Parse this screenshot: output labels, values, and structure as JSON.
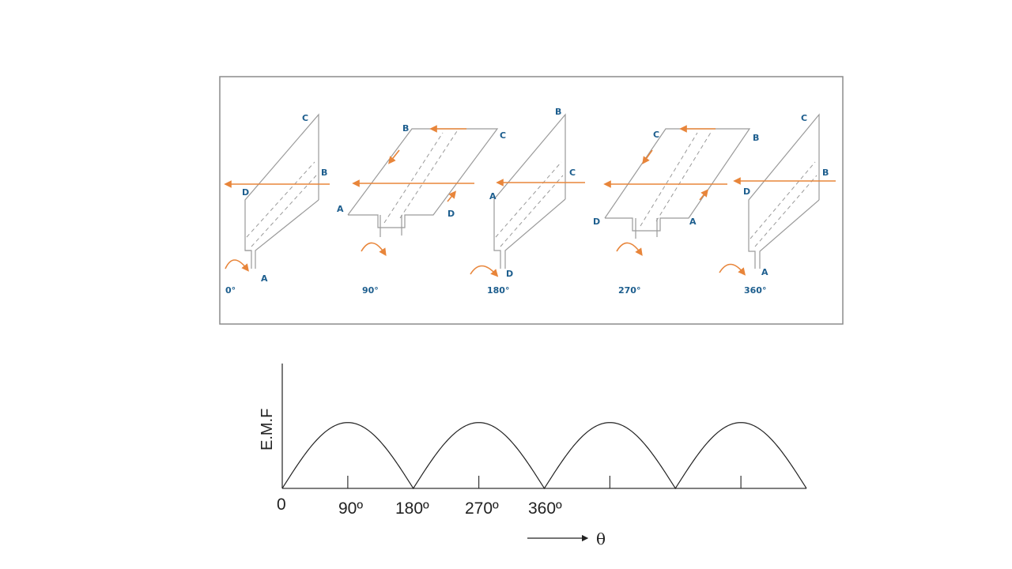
{
  "colors": {
    "field": "#e8853a",
    "labels": "#1d5e8e",
    "coil": "#9a9a9a",
    "frame": "#8c8c8c",
    "curve": "#222222"
  },
  "coil_positions": [
    {
      "angle": "0°",
      "corners": [
        "C",
        "B",
        "D",
        "A"
      ]
    },
    {
      "angle": "90°",
      "corners": [
        "B",
        "C",
        "A",
        "D"
      ]
    },
    {
      "angle": "180°",
      "corners": [
        "B",
        "C",
        "A",
        "D"
      ]
    },
    {
      "angle": "270°",
      "corners": [
        "C",
        "B",
        "D",
        "A"
      ]
    },
    {
      "angle": "360°",
      "corners": [
        "C",
        "B",
        "D",
        "A"
      ]
    }
  ],
  "graph": {
    "ylabel": "E.M.F",
    "xlabel": "θ",
    "ticks": [
      "0",
      "90º",
      "180º",
      "270º",
      "360º"
    ]
  },
  "chart_data": {
    "type": "line",
    "xlabel": "θ",
    "ylabel": "E.M.F",
    "x": [
      0,
      90,
      180,
      270,
      360,
      450,
      540,
      630,
      720
    ],
    "values": [
      0,
      1,
      0,
      1,
      0,
      1,
      0,
      1,
      0
    ],
    "xlim": [
      0,
      720
    ],
    "ylim": [
      0,
      1.5
    ],
    "tick_labels": [
      "0",
      "90º",
      "180º",
      "270º",
      "360º"
    ]
  }
}
